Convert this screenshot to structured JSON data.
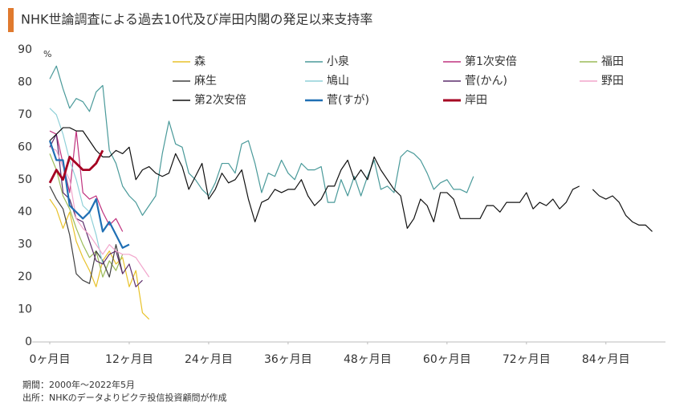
{
  "chart_data": {
    "type": "line",
    "title": "NHK世論調査による過去10代及び岸田内閣の発足以来支持率",
    "y_unit": "%",
    "notes": [
      "期間：2000年～2022年5月",
      "出所：NHKのデータよりピクテ投信投資顧問が作成"
    ],
    "xlim": [
      0,
      93
    ],
    "ylim": [
      0,
      90
    ],
    "xticks": [
      {
        "value": 0,
        "label": "0ヶ月目"
      },
      {
        "value": 12,
        "label": "12ヶ月目"
      },
      {
        "value": 24,
        "label": "24ヶ月目"
      },
      {
        "value": 36,
        "label": "36ヶ月目"
      },
      {
        "value": 48,
        "label": "48ヶ月目"
      },
      {
        "value": 60,
        "label": "60ヶ月目"
      },
      {
        "value": 72,
        "label": "72ヶ月目"
      },
      {
        "value": 84,
        "label": "84ヶ月目"
      }
    ],
    "yticks": [
      0,
      10,
      20,
      30,
      40,
      50,
      60,
      70,
      80,
      90
    ],
    "grid": false,
    "series": [
      {
        "name": "森",
        "color": "#e8c22a",
        "width": 1.2,
        "x": [
          0,
          1,
          2,
          3,
          4,
          5,
          6,
          7,
          8,
          9,
          10,
          11,
          12,
          13,
          14,
          15
        ],
        "values": [
          44,
          41,
          35,
          40,
          31,
          26,
          22,
          17,
          25,
          28,
          24,
          26,
          17,
          22,
          9,
          7
        ]
      },
      {
        "name": "小泉",
        "color": "#4a9a9a",
        "width": 1.2,
        "x": [
          0,
          1,
          2,
          3,
          4,
          5,
          6,
          7,
          8,
          9,
          10,
          11,
          12,
          13,
          14,
          15,
          16,
          17,
          18,
          19,
          20,
          21,
          22,
          23,
          24,
          25,
          26,
          27,
          28,
          29,
          30,
          31,
          32,
          33,
          34,
          35,
          36,
          37,
          38,
          39,
          40,
          41,
          42,
          43,
          44,
          45,
          46,
          47,
          48,
          49,
          50,
          51,
          52,
          53,
          54,
          55,
          56,
          57,
          58,
          59,
          60,
          61,
          62,
          63,
          64
        ],
        "values": [
          81,
          85,
          78,
          72,
          75,
          74,
          71,
          77,
          79,
          59,
          55,
          48,
          45,
          43,
          39,
          42,
          45,
          58,
          68,
          61,
          60,
          52,
          50,
          47,
          45,
          49,
          55,
          55,
          52,
          61,
          62,
          55,
          46,
          52,
          51,
          56,
          52,
          50,
          55,
          53,
          53,
          54,
          43,
          43,
          50,
          45,
          51,
          45,
          51,
          56,
          47,
          48,
          46,
          57,
          59,
          58,
          56,
          52,
          47,
          49,
          50,
          47,
          47,
          46,
          51
        ]
      },
      {
        "name": "第1次安倍",
        "color": "#c0327e",
        "width": 1.2,
        "x": [
          0,
          1,
          2,
          3,
          4,
          5,
          6,
          7,
          8,
          9,
          10,
          11
        ],
        "values": [
          65,
          64,
          55,
          46,
          65,
          46,
          44,
          45,
          40,
          36,
          38,
          34
        ]
      },
      {
        "name": "福田",
        "color": "#9bbb59",
        "width": 1.2,
        "x": [
          0,
          1,
          2,
          3,
          4,
          5,
          6,
          7,
          8,
          9,
          10,
          11
        ],
        "values": [
          58,
          53,
          45,
          41,
          35,
          30,
          26,
          28,
          20,
          25,
          22,
          27
        ]
      },
      {
        "name": "麻生",
        "color": "#404040",
        "width": 1.2,
        "x": [
          0,
          1,
          2,
          3,
          4,
          5,
          6,
          7,
          8,
          9,
          10,
          11
        ],
        "values": [
          48,
          44,
          41,
          33,
          21,
          19,
          18,
          28,
          25,
          20,
          30,
          21
        ]
      },
      {
        "name": "鳩山",
        "color": "#8fd0d8",
        "width": 1.2,
        "x": [
          0,
          1,
          2,
          3,
          4,
          5,
          6,
          7,
          8
        ],
        "values": [
          72,
          70,
          64,
          56,
          50,
          42,
          40,
          33,
          24
        ]
      },
      {
        "name": "菅(かん)",
        "color": "#5c2d6b",
        "width": 1.2,
        "x": [
          0,
          1,
          2,
          3,
          4,
          5,
          6,
          7,
          8,
          9,
          10,
          11,
          12,
          13,
          14
        ],
        "values": [
          60,
          64,
          46,
          44,
          38,
          37,
          31,
          25,
          24,
          27,
          28,
          21,
          24,
          17,
          19
        ]
      },
      {
        "name": "野田",
        "color": "#f2a6cc",
        "width": 1.2,
        "x": [
          0,
          1,
          2,
          3,
          4,
          5,
          6,
          7,
          8,
          9,
          10,
          11,
          12,
          13,
          14,
          15
        ],
        "values": [
          60,
          59,
          54,
          50,
          38,
          35,
          33,
          30,
          27,
          30,
          28,
          27,
          27,
          26,
          23,
          20
        ]
      },
      {
        "name": "第2次安倍",
        "color": "#111111",
        "width": 1.2,
        "x": [
          0,
          1,
          2,
          3,
          4,
          5,
          6,
          7,
          8,
          9,
          10,
          11,
          12,
          13,
          14,
          15,
          16,
          17,
          18,
          19,
          20,
          21,
          22,
          23,
          24,
          25,
          26,
          27,
          28,
          29,
          30,
          31,
          32,
          33,
          34,
          35,
          36,
          37,
          38,
          39,
          40,
          41,
          42,
          43,
          44,
          45,
          46,
          47,
          48,
          49,
          50,
          51,
          52,
          53,
          54,
          55,
          56,
          57,
          58,
          59,
          60,
          61,
          62,
          63,
          64,
          65,
          66,
          67,
          68,
          69,
          70,
          71,
          72,
          73,
          74,
          75,
          76,
          77,
          78,
          79,
          80,
          81,
          82,
          83,
          84,
          85,
          86,
          87,
          88,
          89,
          90,
          91
        ],
        "values": [
          62,
          64,
          66,
          66,
          65,
          65,
          62,
          59,
          57,
          57,
          59,
          58,
          60,
          50,
          53,
          54,
          52,
          51,
          52,
          58,
          54,
          47,
          51,
          55,
          44,
          47,
          52,
          49,
          50,
          53,
          44,
          37,
          43,
          44,
          47,
          46,
          47,
          47,
          50,
          45,
          42,
          44,
          48,
          48,
          53,
          56,
          50,
          53,
          50,
          57,
          53,
          50,
          47,
          45,
          35,
          38,
          44,
          42,
          37,
          46,
          46,
          44,
          38,
          38,
          38,
          38,
          42,
          42,
          40,
          43,
          43,
          43,
          46,
          41,
          43,
          42,
          44,
          41,
          43,
          47,
          48,
          null,
          47,
          45,
          44,
          45,
          43,
          39,
          37,
          36,
          36,
          34
        ]
      },
      {
        "name": "菅(すが)",
        "color": "#1f6fb4",
        "width": 2.2,
        "x": [
          0,
          1,
          2,
          3,
          4,
          5,
          6,
          7,
          8,
          9,
          10,
          11,
          12
        ],
        "values": [
          62,
          56,
          56,
          42,
          40,
          38,
          40,
          44,
          34,
          37,
          33,
          29,
          30
        ]
      },
      {
        "name": "岸田",
        "color": "#a50021",
        "width": 2.8,
        "x": [
          0,
          1,
          2,
          3,
          4,
          5,
          6,
          7,
          8
        ],
        "values": [
          49,
          53,
          50,
          57,
          55,
          53,
          53,
          55,
          59
        ]
      }
    ]
  }
}
